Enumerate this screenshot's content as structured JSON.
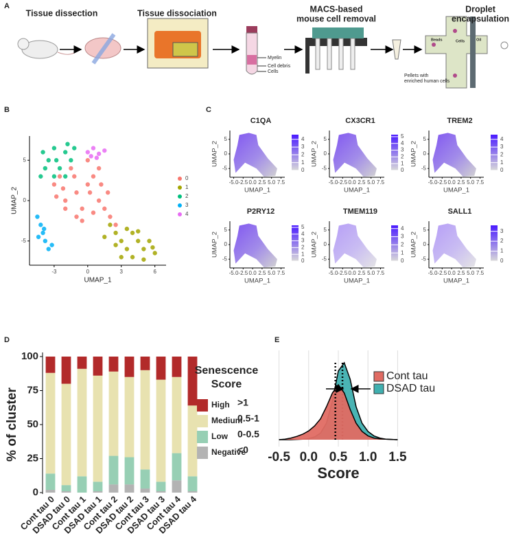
{
  "panel_labels": [
    "A",
    "B",
    "C",
    "D",
    "E"
  ],
  "workflow": {
    "steps": [
      [
        "Tissue dissection"
      ],
      [
        "Tissue dissociation"
      ],
      [
        "MACS-based",
        "mouse cell removal"
      ],
      [
        "Droplet",
        "encapsulation"
      ]
    ],
    "tube_labels": [
      "Myelin",
      "Cell debris",
      "Cells"
    ],
    "pellet_label": [
      "Pellets with",
      "enriched human cells"
    ],
    "chip_labels": [
      "Beads",
      "Cells",
      "Oil"
    ]
  },
  "chart_data": [
    {
      "type": "scatter",
      "xlabel": "UMAP_1",
      "ylabel": "UMAP_2",
      "xlim": [
        -5.2,
        7
      ],
      "ylim": [
        -8,
        8
      ],
      "xticks": [
        -3,
        0,
        3,
        6
      ],
      "yticks": [
        -5,
        0,
        5
      ],
      "legend": "right",
      "series": [
        {
          "name": "0",
          "color": "#F8766D",
          "x": [
            -3,
            -2.5,
            -2,
            -1.5,
            -1,
            -0.5,
            0,
            0.5,
            1,
            1.5,
            2,
            2.5,
            -2,
            -1,
            0,
            1,
            -0.5,
            0.5,
            1.8,
            -2.8,
            -1.2,
            0.2,
            1.2,
            -2.2
          ],
          "y": [
            2,
            3,
            0,
            4,
            1,
            -1,
            2,
            3,
            0,
            -1,
            -2,
            -3,
            -1,
            -2,
            5,
            4,
            -2.5,
            -1.5,
            1,
            0.5,
            3,
            1,
            2,
            1.5
          ]
        },
        {
          "name": "1",
          "color": "#A3A500",
          "x": [
            2,
            2.5,
            3,
            3.5,
            4,
            4.5,
            5,
            5.5,
            6,
            3,
            4,
            5,
            2.5,
            3.5,
            4.5,
            1.5,
            5.8
          ],
          "y": [
            -3,
            -4,
            -5,
            -6,
            -4,
            -5,
            -6,
            -5,
            -6.5,
            -7,
            -7,
            -7.3,
            -5.5,
            -3.5,
            -3.8,
            -4.5,
            -5.8
          ]
        },
        {
          "name": "2",
          "color": "#00BF7D",
          "x": [
            -4,
            -3.5,
            -3,
            -2.5,
            -2,
            -1.5,
            -4.2,
            -3,
            -2,
            -1.2,
            -3.8,
            -2.8,
            -1.8
          ],
          "y": [
            6,
            5,
            6.5,
            4,
            6,
            5,
            3,
            3,
            3,
            6.5,
            4,
            5,
            7
          ]
        },
        {
          "name": "3",
          "color": "#00B0F6",
          "x": [
            -4.5,
            -4.2,
            -4,
            -3.8,
            -3.5,
            -4.4,
            -3.9,
            -3.2
          ],
          "y": [
            -2,
            -3,
            -4,
            -5,
            -6,
            -4.5,
            -3.5,
            -5.5
          ]
        },
        {
          "name": "4",
          "color": "#E76BF3",
          "x": [
            0,
            0.5,
            1,
            1.5,
            0.8,
            0.3
          ],
          "y": [
            6,
            6.5,
            5.8,
            6.2,
            5.3,
            5.5
          ]
        }
      ]
    },
    {
      "type": "feature",
      "title": "C1QA",
      "xlabel": "UMAP_1",
      "ylabel": "UMAP_2",
      "xlim": [
        -6,
        8.5
      ],
      "ylim": [
        -8,
        8
      ],
      "xticks": [
        {
          "value": -5,
          "label": "-5.0"
        },
        {
          "value": -2.5,
          "label": "-2.5"
        },
        {
          "value": 0,
          "label": "0.0"
        },
        {
          "value": 2.5,
          "label": "2.5"
        },
        {
          "value": 5,
          "label": "5.0"
        },
        {
          "value": 7.5,
          "label": "7.5"
        }
      ],
      "yticks": [
        -5,
        0,
        5
      ],
      "clim": [
        0,
        4.6
      ],
      "cticks": [
        0,
        1,
        2,
        3,
        4
      ]
    },
    {
      "type": "feature",
      "title": "CX3CR1",
      "xlabel": "UMAP_1",
      "ylabel": "UMAP_2",
      "xlim": [
        -6,
        8.5
      ],
      "ylim": [
        -8,
        8
      ],
      "xticks": [
        {
          "value": -5,
          "label": "-5.0"
        },
        {
          "value": -2.5,
          "label": "-2.5"
        },
        {
          "value": 0,
          "label": "0.0"
        },
        {
          "value": 2.5,
          "label": "2.5"
        },
        {
          "value": 5,
          "label": "5.0"
        },
        {
          "value": 7.5,
          "label": "7.5"
        }
      ],
      "yticks": [
        -5,
        0,
        5
      ],
      "clim": [
        0,
        5.3
      ],
      "cticks": [
        0,
        1,
        2,
        3,
        4,
        5
      ]
    },
    {
      "type": "feature",
      "title": "TREM2",
      "xlabel": "UMAP_1",
      "ylabel": "UMAP_2",
      "xlim": [
        -6,
        8.5
      ],
      "ylim": [
        -8,
        8
      ],
      "xticks": [
        {
          "value": -5,
          "label": "-5.0"
        },
        {
          "value": -2.5,
          "label": "-2.5"
        },
        {
          "value": 0,
          "label": "0.0"
        },
        {
          "value": 2.5,
          "label": "2.5"
        },
        {
          "value": 5,
          "label": "5.0"
        },
        {
          "value": 7.5,
          "label": "7.5"
        }
      ],
      "yticks": [
        -5,
        0,
        5
      ],
      "clim": [
        0,
        4.6
      ],
      "cticks": [
        0,
        1,
        2,
        3,
        4
      ]
    },
    {
      "type": "feature",
      "title": "P2RY12",
      "xlabel": "UMAP_1",
      "ylabel": "UMAP_2",
      "xlim": [
        -6,
        8.5
      ],
      "ylim": [
        -8,
        8
      ],
      "xticks": [
        {
          "value": -5,
          "label": "-5.0"
        },
        {
          "value": -2.5,
          "label": "-2.5"
        },
        {
          "value": 0,
          "label": "0.0"
        },
        {
          "value": 2.5,
          "label": "2.5"
        },
        {
          "value": 5,
          "label": "5.0"
        },
        {
          "value": 7.5,
          "label": "7.5"
        }
      ],
      "yticks": [
        -5,
        0,
        5
      ],
      "clim": [
        0,
        5.3
      ],
      "cticks": [
        0,
        1,
        2,
        3,
        4,
        5
      ]
    },
    {
      "type": "feature",
      "title": "TMEM119",
      "xlabel": "UMAP_1",
      "ylabel": "UMAP_2",
      "xlim": [
        -6,
        8.5
      ],
      "ylim": [
        -8,
        8
      ],
      "xticks": [
        {
          "value": -5,
          "label": "-5.0"
        },
        {
          "value": -2.5,
          "label": "-2.5"
        },
        {
          "value": 0,
          "label": "0.0"
        },
        {
          "value": 2.5,
          "label": "2.5"
        },
        {
          "value": 5,
          "label": "5.0"
        },
        {
          "value": 7.5,
          "label": "7.5"
        }
      ],
      "yticks": [
        -5,
        0,
        5
      ],
      "clim": [
        0,
        4.4
      ],
      "cticks": [
        0,
        1,
        2,
        3,
        4
      ]
    },
    {
      "type": "feature",
      "title": "SALL1",
      "xlabel": "UMAP_1",
      "ylabel": "UMAP_2",
      "xlim": [
        -6,
        8.5
      ],
      "ylim": [
        -8,
        8
      ],
      "xticks": [
        {
          "value": -5,
          "label": "-5.0"
        },
        {
          "value": -2.5,
          "label": "-2.5"
        },
        {
          "value": 0,
          "label": "0.0"
        },
        {
          "value": 2.5,
          "label": "2.5"
        },
        {
          "value": 5,
          "label": "5.0"
        },
        {
          "value": 7.5,
          "label": "7.5"
        }
      ],
      "yticks": [
        -5,
        0,
        5
      ],
      "clim": [
        0,
        3.6
      ],
      "cticks": [
        0,
        1,
        2,
        3
      ]
    },
    {
      "type": "stacked_bar",
      "ylabel": "% of cluster",
      "ylim": [
        0,
        100
      ],
      "yticks": [
        0,
        25,
        50,
        75,
        100
      ],
      "categories": [
        "Cont tau 0",
        "DSAD tau 0",
        "Cont tau 1",
        "DSAD tau 1",
        "Cont tau 2",
        "DSAD tau 2",
        "Cont tau 3",
        "DSAD tau 3",
        "Cont tau 4",
        "DSAD tau 4"
      ],
      "legend_title": [
        "Senescence",
        "Score"
      ],
      "series": [
        {
          "name": "Negative",
          "range": "<0",
          "color": "#b3b3b3",
          "values": [
            2,
            1,
            0,
            1,
            6,
            6,
            3,
            1,
            9,
            1
          ]
        },
        {
          "name": "Low",
          "range": "0-0.5",
          "color": "#97cfb4",
          "values": [
            12,
            4.5,
            12,
            7,
            21,
            20,
            14,
            7,
            20,
            11
          ]
        },
        {
          "name": "Medium",
          "range": "0.5-1",
          "color": "#e8e2b0",
          "values": [
            74,
            74.5,
            79,
            78,
            62,
            59,
            73,
            75,
            56,
            52
          ]
        },
        {
          "name": "High",
          "range": ">1",
          "color": "#b22a2a",
          "values": [
            12,
            20,
            9,
            14,
            11,
            15,
            10,
            17,
            15,
            36
          ]
        }
      ]
    },
    {
      "type": "density",
      "xlabel": "Score",
      "xlim": [
        -0.75,
        1.75
      ],
      "xticks": [
        -0.5,
        {
          "value": 0,
          "label": "0.0"
        },
        0.5,
        {
          "value": 1,
          "label": "1.0"
        },
        1.5
      ],
      "x": [
        -0.5,
        -0.4,
        -0.3,
        -0.2,
        -0.1,
        0,
        0.1,
        0.2,
        0.3,
        0.4,
        0.5,
        0.6,
        0.7,
        0.8,
        0.9,
        1,
        1.1,
        1.2,
        1.3,
        1.4,
        1.5
      ],
      "series": [
        {
          "name": "DSAD tau",
          "color": "#40b0b0",
          "median": 0.57,
          "values": [
            0,
            0,
            0,
            0.005,
            0.01,
            0.02,
            0.05,
            0.12,
            0.3,
            0.7,
            1.25,
            1.4,
            1.1,
            0.6,
            0.3,
            0.15,
            0.07,
            0.03,
            0.01,
            0.005,
            0
          ]
        },
        {
          "name": "Cont tau",
          "color": "#e06b63",
          "median": 0.45,
          "values": [
            0,
            0.01,
            0.03,
            0.06,
            0.1,
            0.16,
            0.25,
            0.38,
            0.6,
            0.85,
            1,
            0.85,
            0.55,
            0.3,
            0.15,
            0.07,
            0.03,
            0.015,
            0.01,
            0.005,
            0
          ]
        }
      ]
    }
  ]
}
